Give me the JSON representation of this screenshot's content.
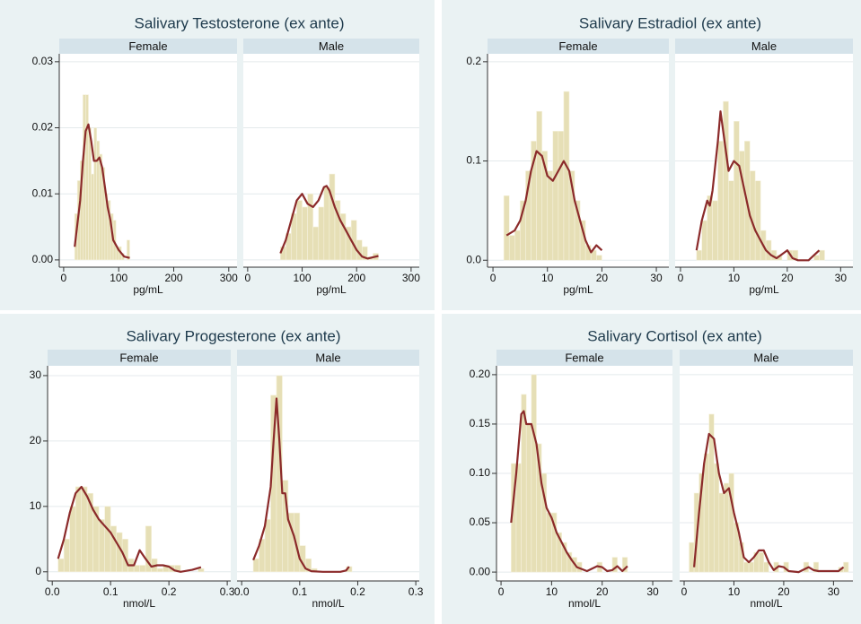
{
  "chart_data": [
    {
      "type": "histogram",
      "title": "Salivary Testosterone (ex ante)",
      "x_label": "pg/mL",
      "bar_color": "#e6dfb6",
      "line_color": "#8b2a2a",
      "grid": true,
      "xlim": [
        -8,
        315
      ],
      "xticks": [
        0,
        100,
        200,
        300
      ],
      "ylim": [
        -0.0011,
        0.0312
      ],
      "yticks": [
        {
          "value": 0,
          "label": "0.00"
        },
        {
          "value": 0.01,
          "label": "0.01"
        },
        {
          "value": 0.02,
          "label": "0.02"
        },
        {
          "value": 0.03,
          "label": "0.03"
        }
      ],
      "facets": [
        {
          "name": "Female",
          "bins": [
            20,
            25,
            30,
            35,
            40,
            45,
            50,
            55,
            60,
            65,
            70,
            75,
            80,
            85,
            90,
            95,
            100,
            105,
            110,
            115,
            120
          ],
          "values": [
            0.007,
            0.012,
            0.015,
            0.025,
            0.025,
            0.02,
            0.013,
            0.02,
            0.018,
            0.016,
            0.014,
            0.01,
            0.009,
            0.007,
            0.006,
            0.002,
            0.002,
            0.001,
            0,
            0.003
          ],
          "line": {
            "x": [
              20,
              30,
              35,
              40,
              45,
              50,
              55,
              60,
              65,
              70,
              75,
              80,
              85,
              90,
              100,
              110,
              120
            ],
            "y": [
              0.002,
              0.009,
              0.015,
              0.0195,
              0.0205,
              0.018,
              0.015,
              0.015,
              0.0155,
              0.014,
              0.011,
              0.008,
              0.006,
              0.003,
              0.0015,
              0.0005,
              0.0003
            ]
          }
        },
        {
          "name": "Male",
          "bins": [
            60,
            70,
            80,
            90,
            100,
            110,
            120,
            130,
            140,
            150,
            160,
            170,
            180,
            190,
            200,
            210,
            220,
            230,
            240
          ],
          "values": [
            0.002,
            0.004,
            0.007,
            0.009,
            0.008,
            0.01,
            0.005,
            0.008,
            0.011,
            0.013,
            0.009,
            0.007,
            0.005,
            0.006,
            0.003,
            0.002,
            0.0005,
            0.001
          ],
          "line": {
            "x": [
              60,
              70,
              80,
              90,
              100,
              110,
              120,
              130,
              140,
              145,
              150,
              160,
              170,
              180,
              190,
              200,
              210,
              220,
              230,
              240
            ],
            "y": [
              0.001,
              0.003,
              0.006,
              0.009,
              0.01,
              0.0085,
              0.008,
              0.009,
              0.011,
              0.0112,
              0.0105,
              0.008,
              0.006,
              0.0045,
              0.003,
              0.0015,
              0.0005,
              0.0002,
              0.0004,
              0.0006
            ]
          }
        }
      ]
    },
    {
      "type": "histogram",
      "title": "Salivary Estradiol (ex ante)",
      "x_label": "pg/mL",
      "bar_color": "#e6dfb6",
      "line_color": "#8b2a2a",
      "grid": true,
      "xlim": [
        -1,
        32.3
      ],
      "xticks": [
        0,
        10,
        20,
        30
      ],
      "ylim": [
        -0.007,
        0.208
      ],
      "yticks": [
        {
          "value": 0,
          "label": "0.0"
        },
        {
          "value": 0.1,
          "label": "0.1"
        },
        {
          "value": 0.2,
          "label": "0.2"
        }
      ],
      "facets": [
        {
          "name": "Female",
          "bins": [
            2,
            3,
            4,
            5,
            6,
            7,
            8,
            9,
            10,
            11,
            12,
            13,
            14,
            15,
            16,
            17,
            18,
            19,
            20
          ],
          "values": [
            0.065,
            0.025,
            0.03,
            0.06,
            0.09,
            0.12,
            0.15,
            0.11,
            0.09,
            0.13,
            0.13,
            0.17,
            0.09,
            0.06,
            0.04,
            0.015,
            0.01,
            0.005
          ],
          "line": {
            "x": [
              2.5,
              4,
              5,
              6,
              7,
              8,
              9,
              10,
              11,
              12,
              13,
              14,
              15,
              16,
              17,
              18,
              19,
              20
            ],
            "y": [
              0.025,
              0.03,
              0.04,
              0.06,
              0.09,
              0.11,
              0.105,
              0.085,
              0.08,
              0.09,
              0.1,
              0.09,
              0.06,
              0.04,
              0.02,
              0.008,
              0.015,
              0.01
            ]
          }
        },
        {
          "name": "Male",
          "bins": [
            3,
            4,
            5,
            6,
            7,
            8,
            9,
            10,
            11,
            12,
            13,
            14,
            15,
            16,
            17,
            18,
            19,
            20,
            21,
            22,
            23,
            24,
            25,
            26,
            27
          ],
          "values": [
            0.01,
            0.04,
            0.065,
            0.06,
            0.12,
            0.16,
            0.08,
            0.14,
            0.11,
            0.12,
            0.09,
            0.08,
            0.03,
            0.02,
            0.01,
            0.005,
            0,
            0.01,
            0.01,
            0,
            0,
            0,
            0.005,
            0.01
          ],
          "line": {
            "x": [
              3,
              4,
              5,
              5.5,
              6,
              7,
              7.5,
              8,
              9,
              10,
              11,
              12,
              13,
              14,
              15,
              16,
              17,
              18,
              20,
              21,
              22,
              24,
              25,
              26
            ],
            "y": [
              0.01,
              0.04,
              0.06,
              0.055,
              0.07,
              0.12,
              0.15,
              0.13,
              0.09,
              0.1,
              0.095,
              0.07,
              0.045,
              0.03,
              0.02,
              0.01,
              0.005,
              0.002,
              0.01,
              0.002,
              0,
              0,
              0.005,
              0.01
            ]
          }
        }
      ]
    },
    {
      "type": "histogram",
      "title": "Salivary Progesterone (ex ante)",
      "x_label": "nmol/L",
      "bar_color": "#e6dfb6",
      "line_color": "#8b2a2a",
      "grid": true,
      "xlim": [
        -0.008,
        0.306
      ],
      "xticks": [
        {
          "value": 0,
          "label": "0.0"
        },
        {
          "value": 0.1,
          "label": "0.1"
        },
        {
          "value": 0.2,
          "label": "0.2"
        },
        {
          "value": 0.3,
          "label": "0.3"
        }
      ],
      "ylim": [
        -1.4,
        31.5
      ],
      "yticks": [
        0,
        10,
        20,
        30
      ],
      "facets": [
        {
          "name": "Female",
          "bins": [
            0.01,
            0.02,
            0.03,
            0.04,
            0.05,
            0.06,
            0.07,
            0.08,
            0.09,
            0.1,
            0.11,
            0.12,
            0.13,
            0.14,
            0.15,
            0.16,
            0.17,
            0.18,
            0.19,
            0.2,
            0.21,
            0.22,
            0.23,
            0.24,
            0.25,
            0.26
          ],
          "values": [
            2,
            5,
            10,
            13,
            13,
            12,
            10,
            8,
            10,
            7,
            6,
            5,
            2,
            1,
            1,
            7,
            2,
            0.5,
            1,
            1,
            1,
            0,
            0,
            0,
            0.5
          ],
          "line": {
            "x": [
              0.01,
              0.02,
              0.03,
              0.04,
              0.05,
              0.06,
              0.07,
              0.08,
              0.09,
              0.1,
              0.11,
              0.12,
              0.13,
              0.14,
              0.15,
              0.16,
              0.17,
              0.18,
              0.19,
              0.2,
              0.21,
              0.22,
              0.24,
              0.255
            ],
            "y": [
              2,
              5,
              9,
              12,
              13,
              11.5,
              9.5,
              8,
              7,
              6,
              4.5,
              3,
              1,
              1,
              3.3,
              2,
              0.8,
              1,
              1,
              0.8,
              0.2,
              0,
              0.3,
              0.7
            ]
          }
        },
        {
          "name": "Male",
          "bins": [
            0.02,
            0.03,
            0.04,
            0.05,
            0.06,
            0.07,
            0.08,
            0.09,
            0.1,
            0.11,
            0.12,
            0.13,
            0.14,
            0.15,
            0.16,
            0.17,
            0.18,
            0.19
          ],
          "values": [
            2,
            5,
            8,
            27,
            30,
            14,
            9,
            9,
            4,
            2,
            0.5,
            0,
            0,
            0,
            0,
            0,
            0.8
          ],
          "line": {
            "x": [
              0.02,
              0.03,
              0.04,
              0.05,
              0.055,
              0.06,
              0.065,
              0.07,
              0.075,
              0.08,
              0.09,
              0.1,
              0.11,
              0.12,
              0.14,
              0.17,
              0.18,
              0.185
            ],
            "y": [
              1.8,
              4,
              7,
              13,
              20,
              26.5,
              20,
              12,
              12,
              8,
              5.5,
              2,
              0.5,
              0.1,
              0,
              0,
              0.2,
              0.8
            ]
          }
        }
      ]
    },
    {
      "type": "histogram",
      "title": "Salivary Cortisol (ex ante)",
      "x_label": "nmol/L",
      "bar_color": "#e6dfb6",
      "line_color": "#8b2a2a",
      "grid": true,
      "xlim": [
        -0.9,
        33.9
      ],
      "xticks": [
        0,
        10,
        20,
        30
      ],
      "ylim": [
        -0.009,
        0.209
      ],
      "yticks": [
        {
          "value": 0,
          "label": "0.00"
        },
        {
          "value": 0.05,
          "label": "0.05"
        },
        {
          "value": 0.1,
          "label": "0.10"
        },
        {
          "value": 0.15,
          "label": "0.15"
        },
        {
          "value": 0.2,
          "label": "0.20"
        }
      ],
      "facets": [
        {
          "name": "Female",
          "bins": [
            2,
            3,
            4,
            5,
            6,
            7,
            8,
            9,
            10,
            11,
            12,
            13,
            14,
            15,
            16,
            17,
            18,
            19,
            20,
            21,
            22,
            23,
            24,
            25,
            26
          ],
          "values": [
            0.11,
            0.11,
            0.18,
            0.15,
            0.2,
            0.13,
            0.1,
            0.06,
            0.06,
            0.04,
            0.03,
            0.02,
            0.015,
            0.01,
            0,
            0,
            0,
            0.01,
            0,
            0,
            0.015,
            0,
            0.015,
            0
          ],
          "line": {
            "x": [
              2,
              3,
              4,
              4.5,
              5,
              6,
              7,
              8,
              9,
              10,
              11,
              12,
              13,
              14,
              15,
              17,
              19,
              20,
              21,
              22,
              23,
              24,
              25
            ],
            "y": [
              0.05,
              0.1,
              0.16,
              0.163,
              0.15,
              0.15,
              0.13,
              0.09,
              0.065,
              0.055,
              0.04,
              0.03,
              0.02,
              0.012,
              0.005,
              0.001,
              0.006,
              0.005,
              0.001,
              0.002,
              0.006,
              0.001,
              0.006
            ]
          }
        },
        {
          "name": "Male",
          "bins": [
            1,
            2,
            3,
            4,
            5,
            6,
            7,
            8,
            9,
            10,
            11,
            12,
            13,
            14,
            15,
            16,
            17,
            18,
            19,
            20,
            21,
            22,
            23,
            24,
            25,
            26,
            27,
            28,
            29,
            30,
            31,
            32,
            33
          ],
          "values": [
            0.03,
            0.08,
            0.1,
            0.12,
            0.16,
            0.11,
            0.08,
            0.09,
            0.1,
            0.05,
            0.03,
            0.01,
            0.01,
            0.02,
            0.02,
            0.01,
            0,
            0.01,
            0,
            0.01,
            0,
            0,
            0,
            0.01,
            0,
            0.01,
            0,
            0,
            0,
            0,
            0.005,
            0.01
          ],
          "line": {
            "x": [
              2,
              3,
              4,
              5,
              6,
              7,
              8,
              9,
              10,
              11,
              12,
              13,
              14,
              15,
              16,
              17,
              18,
              19,
              20,
              21,
              23,
              25,
              26,
              27,
              29,
              31,
              32
            ],
            "y": [
              0.005,
              0.06,
              0.11,
              0.14,
              0.135,
              0.1,
              0.08,
              0.085,
              0.06,
              0.04,
              0.015,
              0.01,
              0.015,
              0.022,
              0.022,
              0.01,
              0.002,
              0.006,
              0.005,
              0.001,
              0,
              0.005,
              0.002,
              0.001,
              0.001,
              0.001,
              0.005
            ]
          }
        }
      ]
    }
  ]
}
